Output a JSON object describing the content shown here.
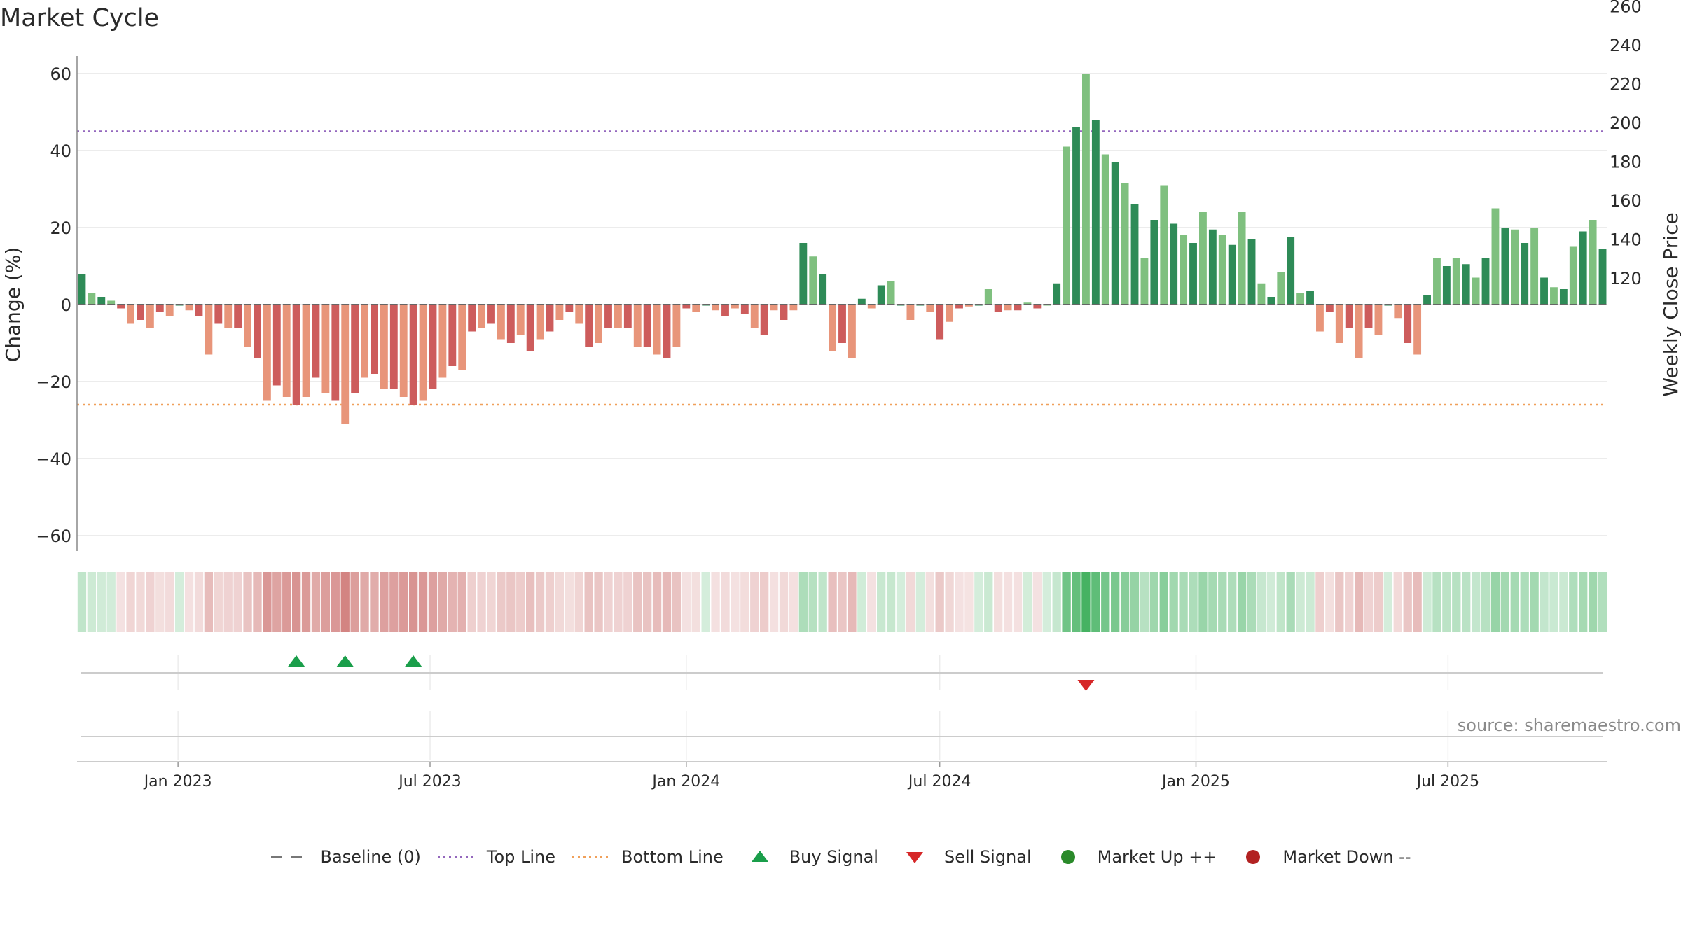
{
  "title": "Market Cycle",
  "source": "source: sharemaestro.com",
  "legend": [
    {
      "label": "Baseline (0)",
      "kind": "dash-line",
      "color": "#777777"
    },
    {
      "label": "Top Line",
      "kind": "dot-line",
      "color": "#9467bd"
    },
    {
      "label": "Bottom Line",
      "kind": "dot-line",
      "color": "#f0a05a"
    },
    {
      "label": "Buy Signal",
      "kind": "triangle-up",
      "color": "#1a9e4a"
    },
    {
      "label": "Sell Signal",
      "kind": "triangle-down",
      "color": "#d62728"
    },
    {
      "label": "Market Up ++",
      "kind": "circle",
      "color": "#2a8a2a"
    },
    {
      "label": "Market Down --",
      "kind": "circle",
      "color": "#b22222"
    }
  ],
  "chart_data": {
    "type": "bar",
    "title": "Market Cycle",
    "ylabel": "Change (%)",
    "y2label": "Weekly Close Price",
    "ylim": [
      -64,
      60
    ],
    "y2lim": [
      110,
      270
    ],
    "yticks": [
      60,
      40,
      20,
      0,
      -20,
      -40,
      -60
    ],
    "y2ticks": [
      260,
      240,
      220,
      200,
      180,
      160,
      140,
      120
    ],
    "top_line": 45,
    "bottom_line": -26,
    "start_date": "2022-10-24",
    "interval_days": 7,
    "xticks": [
      {
        "label": "Jan 2023",
        "date": "2023-01-01"
      },
      {
        "label": "Jul 2023",
        "date": "2023-07-01"
      },
      {
        "label": "Jan 2024",
        "date": "2024-01-01"
      },
      {
        "label": "Jul 2024",
        "date": "2024-07-01"
      },
      {
        "label": "Jan 2025",
        "date": "2025-01-01"
      },
      {
        "label": "Jul 2025",
        "date": "2025-07-01"
      }
    ],
    "values": [
      8,
      3,
      2,
      1,
      -1,
      -5,
      -4,
      -6,
      -2,
      -3,
      0,
      -1.5,
      -3,
      -13,
      -5,
      -6,
      -6,
      -11,
      -14,
      -25,
      -21,
      -24,
      -26,
      -24,
      -19,
      -23,
      -25,
      -31,
      -23,
      -19,
      -18,
      -22,
      -22,
      -24,
      -26,
      -25,
      -22,
      -19,
      -16,
      -17,
      -7,
      -6,
      -5,
      -9,
      -10,
      -8,
      -12,
      -9,
      -7,
      -4,
      -2,
      -5,
      -11,
      -10,
      -6,
      -6,
      -6,
      -11,
      -11,
      -13,
      -14,
      -11,
      -1,
      -2,
      0,
      -1.5,
      -3,
      -1,
      -2.5,
      -6,
      -8,
      -1.5,
      -4,
      -1.5,
      16,
      12.5,
      8,
      -12,
      -10,
      -14,
      1.5,
      -1,
      5,
      6,
      0,
      -4,
      0,
      -2,
      -9,
      -4.5,
      -1,
      -0.5,
      0,
      4,
      -2,
      -1.5,
      -1.5,
      0.5,
      -1,
      0,
      5.5,
      41,
      46,
      60,
      48,
      39,
      37,
      31.5,
      26,
      12,
      22,
      31,
      21,
      18,
      16,
      24,
      19.5,
      18,
      15.5,
      24,
      17,
      5.5,
      2,
      8.5,
      17.5,
      3,
      3.5,
      -7,
      -2,
      -10,
      -6,
      -14,
      -6,
      -8,
      0,
      -3.5,
      -10,
      -13,
      2.5,
      12,
      10,
      12,
      10.5,
      7,
      12,
      25,
      20,
      19.5,
      16,
      20,
      7,
      4.5,
      4,
      15,
      19,
      22,
      14.5
    ],
    "buy_signals": [
      22,
      27,
      34
    ],
    "sell_signals": [
      103
    ]
  }
}
